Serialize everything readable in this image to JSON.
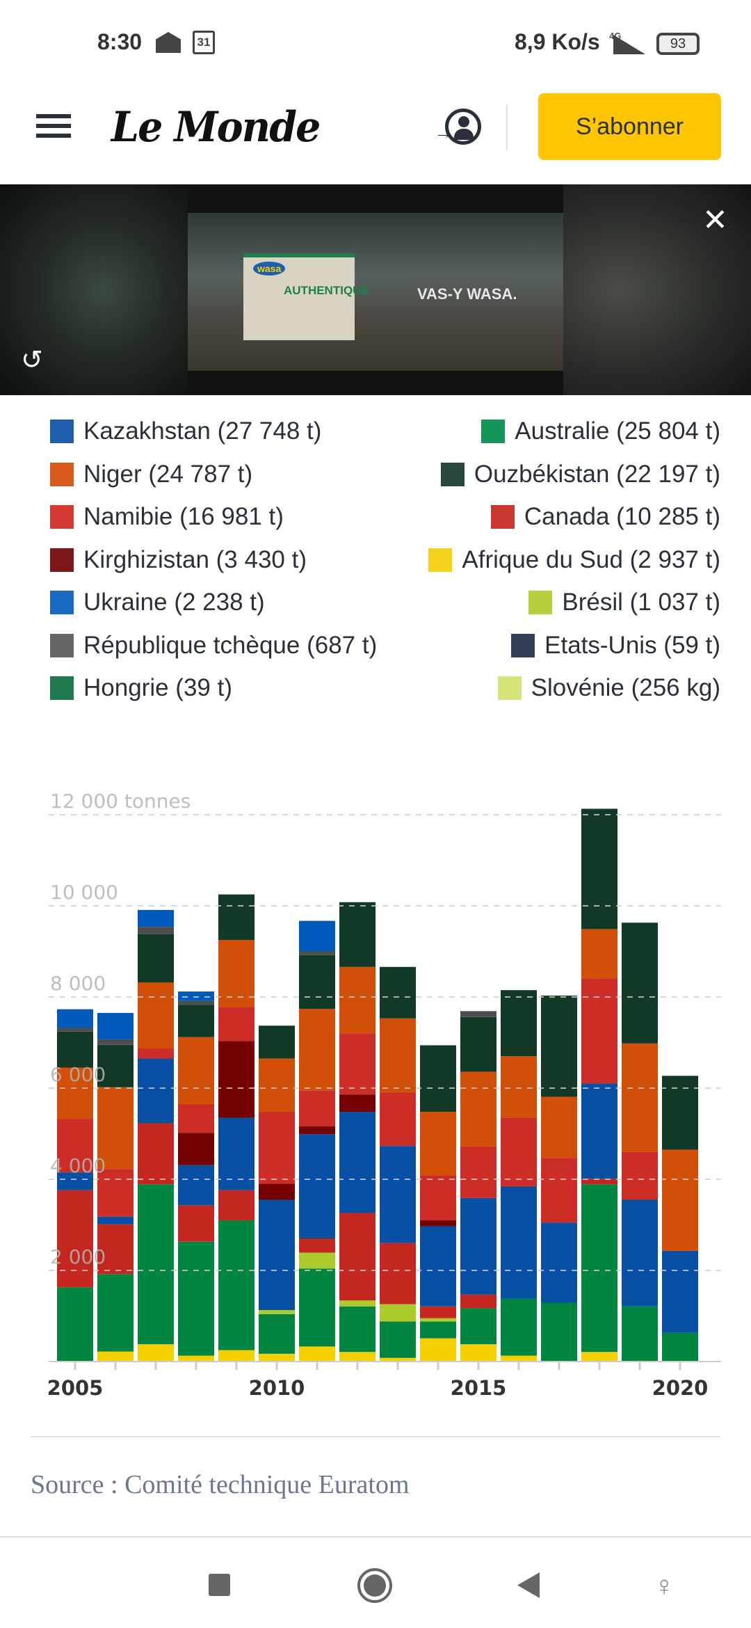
{
  "status_bar": {
    "time": "8:30",
    "calendar_day": "31",
    "network_speed": "8,9 Ko/s",
    "network_type": "4G",
    "battery": "93"
  },
  "header": {
    "logo_text": "Le Monde",
    "subscribe_label": "S’abonner"
  },
  "ad": {
    "brand": "wasa",
    "product": "AUTHENTIQUE",
    "slogan": "VAS-Y WASA."
  },
  "legend": {
    "left": [
      {
        "label": "Kazakhstan (27 748 t)",
        "color": "#1f5fae"
      },
      {
        "label": "Niger (24 787 t)",
        "color": "#d85a1c"
      },
      {
        "label": "Namibie (16 981 t)",
        "color": "#d63a35"
      },
      {
        "label": "Kirghizistan (3 430 t)",
        "color": "#7d1818"
      },
      {
        "label": "Ukraine (2 238 t)",
        "color": "#1a6ac4"
      },
      {
        "label": "République tchèque (687 t)",
        "color": "#666666"
      },
      {
        "label": "Hongrie (39 t)",
        "color": "#217a4e"
      }
    ],
    "right": [
      {
        "label": "Australie (25 804 t)",
        "color": "#15955a"
      },
      {
        "label": "Ouzbékistan (22 197 t)",
        "color": "#27483a"
      },
      {
        "label": "Canada (10 285 t)",
        "color": "#c9372f"
      },
      {
        "label": "Afrique du Sud (2 937 t)",
        "color": "#f5d31c"
      },
      {
        "label": "Brésil (1 037 t)",
        "color": "#b5cf3d"
      },
      {
        "label": "Etats-Unis (59 t)",
        "color": "#353c58"
      },
      {
        "label": "Slovénie (256 kg)",
        "color": "#d8e47a"
      }
    ]
  },
  "chart_data": {
    "type": "bar",
    "stacked": true,
    "title": "",
    "xlabel": "",
    "ylabel": "tonnes",
    "ylim": [
      0,
      12000
    ],
    "yticks": [
      2000,
      4000,
      6000,
      8000,
      10000,
      12000
    ],
    "ytick_labels": [
      "2 000",
      "4 000",
      "6 000",
      "8 000",
      "10 000",
      "12 000 tonnes"
    ],
    "grid": true,
    "categories": [
      2005,
      2006,
      2007,
      2008,
      2009,
      2010,
      2011,
      2012,
      2013,
      2014,
      2015,
      2016,
      2017,
      2018,
      2019,
      2020
    ],
    "xtick_labels": [
      "2005",
      "2010",
      "2015",
      "2020"
    ],
    "series": [
      {
        "name": "Afrique du Sud",
        "color": "#f5d000",
        "values": [
          0,
          220,
          380,
          130,
          250,
          170,
          330,
          210,
          80,
          510,
          380,
          130,
          0,
          210,
          0,
          0
        ]
      },
      {
        "name": "Australie",
        "color": "#008540",
        "values": [
          1630,
          1700,
          3510,
          2500,
          2850,
          870,
          1710,
          1000,
          800,
          370,
          790,
          1250,
          1290,
          3680,
          1210,
          630
        ]
      },
      {
        "name": "Brésil",
        "color": "#aecb2e",
        "values": [
          0,
          0,
          0,
          0,
          0,
          90,
          350,
          130,
          380,
          70,
          0,
          0,
          0,
          0,
          0,
          0
        ]
      },
      {
        "name": "Canada",
        "color": "#c4271f",
        "values": [
          2130,
          1090,
          1340,
          800,
          660,
          0,
          300,
          1920,
          1340,
          260,
          300,
          0,
          0,
          120,
          0,
          0
        ]
      },
      {
        "name": "Etats-Unis",
        "color": "#2d3553",
        "values": [
          0,
          0,
          0,
          0,
          0,
          0,
          40,
          0,
          0,
          0,
          0,
          0,
          0,
          0,
          0,
          0
        ]
      },
      {
        "name": "Hongrie",
        "color": "#1f7a4a",
        "values": [
          0,
          0,
          0,
          0,
          0,
          0,
          0,
          0,
          0,
          0,
          0,
          0,
          0,
          0,
          0,
          0
        ]
      },
      {
        "name": "Kazakhstan",
        "color": "#064fa3",
        "values": [
          390,
          170,
          1420,
          880,
          1590,
          2420,
          2260,
          2220,
          2130,
          1760,
          2120,
          2460,
          1760,
          2090,
          2340,
          1800
        ]
      },
      {
        "name": "Kirghizistan",
        "color": "#750000",
        "values": [
          0,
          0,
          0,
          710,
          1680,
          350,
          170,
          380,
          0,
          130,
          0,
          0,
          0,
          0,
          0,
          0
        ]
      },
      {
        "name": "Namibie",
        "color": "#cd2d27",
        "values": [
          1170,
          1040,
          220,
          630,
          750,
          1580,
          790,
          1340,
          1170,
          990,
          1130,
          1510,
          1420,
          2310,
          1050,
          0
        ]
      },
      {
        "name": "Niger",
        "color": "#d14f06",
        "values": [
          1130,
          1800,
          1450,
          1470,
          1470,
          1170,
          1790,
          1460,
          1630,
          1390,
          1640,
          1350,
          1340,
          1080,
          2380,
          2220
        ]
      },
      {
        "name": "Ouzbékistan",
        "color": "#113925",
        "values": [
          790,
          930,
          1060,
          710,
          1000,
          720,
          1180,
          1420,
          1130,
          1460,
          1200,
          1450,
          2220,
          2640,
          2650,
          1620
        ]
      },
      {
        "name": "République tchèque",
        "color": "#4d4d4d",
        "values": [
          80,
          120,
          160,
          80,
          0,
          0,
          80,
          0,
          0,
          0,
          130,
          0,
          0,
          0,
          0,
          0
        ]
      },
      {
        "name": "Slovénie",
        "color": "#d6e26a",
        "values": [
          0,
          0,
          0,
          0,
          0,
          0,
          0,
          0,
          0,
          0,
          0,
          0,
          0,
          0,
          0,
          0
        ]
      },
      {
        "name": "Ukraine",
        "color": "#015ab9",
        "values": [
          410,
          580,
          370,
          210,
          0,
          0,
          670,
          0,
          0,
          0,
          0,
          0,
          0,
          0,
          0,
          0
        ]
      }
    ]
  },
  "source": "Source : Comité technique Euratom"
}
